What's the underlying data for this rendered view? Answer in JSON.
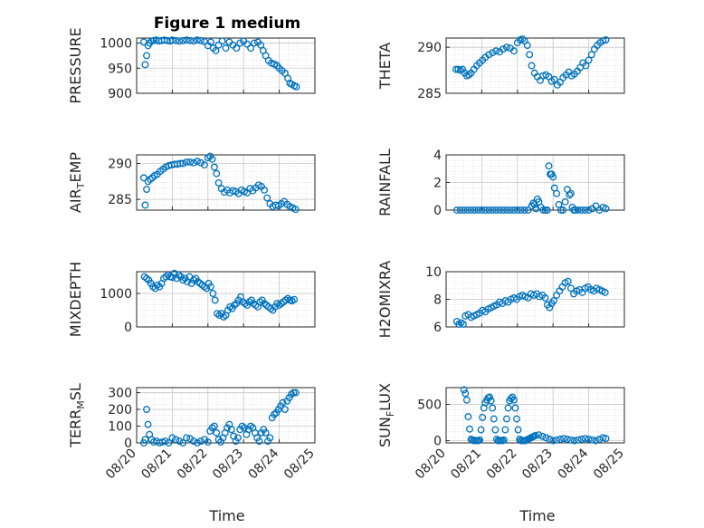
{
  "title": "Figure 1 medium",
  "xlabel": "Time",
  "colors": {
    "marker": "#0072bd",
    "axis": "#262626",
    "grid": "#d9d9d9"
  },
  "chart_data": [
    {
      "type": "scatter",
      "ylabel": "PRESSURE",
      "ylabel_main": "PRESSURE",
      "ylabel_sub": "",
      "ylabel_rest": "",
      "ylim": [
        900,
        1010
      ],
      "yticks": [
        900,
        950,
        1000
      ],
      "xlim": [
        0,
        5
      ],
      "xticks": [],
      "xticklabels": [],
      "x": [
        0.2,
        0.24,
        0.28,
        0.32,
        0.36,
        0.42,
        0.48,
        0.55,
        0.62,
        0.7,
        0.78,
        0.86,
        0.94,
        1.0,
        1.1,
        1.2,
        1.3,
        1.4,
        1.5,
        1.6,
        1.7,
        1.8,
        1.9,
        2.0,
        2.08,
        2.15,
        2.22,
        2.3,
        2.4,
        2.5,
        2.6,
        2.7,
        2.8,
        2.9,
        3.0,
        3.1,
        3.2,
        3.3,
        3.4,
        3.48,
        3.55,
        3.62,
        3.7,
        3.78,
        3.86,
        3.94,
        4.0,
        4.08,
        4.16,
        4.24,
        4.3,
        4.35,
        4.42,
        4.48
      ],
      "y": [
        1002,
        957,
        975,
        995,
        1000,
        1004,
        1005,
        1006,
        1004,
        1005,
        1006,
        1005,
        1004,
        1006,
        1005,
        1004,
        1005,
        1006,
        1005,
        1004,
        1006,
        1005,
        1003,
        995,
        1002,
        990,
        985,
        996,
        1004,
        990,
        1002,
        996,
        990,
        1000,
        1004,
        998,
        990,
        1000,
        1002,
        996,
        985,
        975,
        965,
        960,
        958,
        955,
        950,
        945,
        940,
        930,
        920,
        918,
        915,
        913
      ]
    },
    {
      "type": "scatter",
      "ylabel": "THETA",
      "ylabel_main": "THETA",
      "ylabel_sub": "",
      "ylabel_rest": "",
      "ylim": [
        285,
        291
      ],
      "yticks": [
        285,
        290
      ],
      "xlim": [
        0,
        5
      ],
      "xticks": [],
      "xticklabels": [],
      "x": [
        0.28,
        0.34,
        0.4,
        0.46,
        0.52,
        0.58,
        0.64,
        0.7,
        0.78,
        0.86,
        0.94,
        1.02,
        1.1,
        1.2,
        1.3,
        1.4,
        1.5,
        1.6,
        1.7,
        1.8,
        1.9,
        2.0,
        2.08,
        2.14,
        2.2,
        2.28,
        2.34,
        2.4,
        2.48,
        2.56,
        2.64,
        2.72,
        2.8,
        2.88,
        2.96,
        3.04,
        3.12,
        3.2,
        3.28,
        3.36,
        3.44,
        3.52,
        3.6,
        3.68,
        3.76,
        3.84,
        3.92,
        4.0,
        4.08,
        4.16,
        4.24,
        4.32,
        4.4,
        4.48
      ],
      "y": [
        287.6,
        287.6,
        287.5,
        287.6,
        287.2,
        286.9,
        287.0,
        287.2,
        287.6,
        288.0,
        288.3,
        288.6,
        288.9,
        289.2,
        289.4,
        289.6,
        289.5,
        289.8,
        290.0,
        289.9,
        289.6,
        290.5,
        290.8,
        290.9,
        290.7,
        290.2,
        289.2,
        288.0,
        287.2,
        286.8,
        286.4,
        286.9,
        287.0,
        286.8,
        286.3,
        286.5,
        285.9,
        286.2,
        286.7,
        287.0,
        287.3,
        286.9,
        287.1,
        287.4,
        287.8,
        288.3,
        288.0,
        288.6,
        289.2,
        289.8,
        290.2,
        290.5,
        290.7,
        290.8
      ]
    },
    {
      "type": "scatter",
      "ylabel": "AIR_TEMP",
      "ylabel_main": "AIR",
      "ylabel_sub": "T",
      "ylabel_rest": "EMP",
      "ylim": [
        283.5,
        291.2
      ],
      "yticks": [
        285,
        290
      ],
      "xlim": [
        0,
        5
      ],
      "xticks": [],
      "xticklabels": [],
      "x": [
        0.2,
        0.24,
        0.28,
        0.32,
        0.38,
        0.44,
        0.5,
        0.58,
        0.66,
        0.74,
        0.82,
        0.9,
        0.98,
        1.06,
        1.14,
        1.22,
        1.3,
        1.4,
        1.5,
        1.6,
        1.7,
        1.8,
        1.9,
        2.0,
        2.06,
        2.12,
        2.18,
        2.24,
        2.3,
        2.38,
        2.46,
        2.54,
        2.62,
        2.7,
        2.78,
        2.86,
        2.94,
        3.02,
        3.1,
        3.18,
        3.26,
        3.34,
        3.42,
        3.5,
        3.58,
        3.66,
        3.74,
        3.82,
        3.9,
        3.98,
        4.06,
        4.14,
        4.22,
        4.3,
        4.38,
        4.46
      ],
      "y": [
        288.0,
        284.2,
        286.4,
        287.5,
        287.8,
        288.0,
        288.3,
        288.5,
        288.9,
        289.2,
        289.5,
        289.7,
        289.8,
        289.9,
        289.9,
        290.0,
        290.0,
        290.2,
        290.2,
        290.1,
        290.3,
        290.1,
        289.8,
        290.8,
        291.0,
        290.6,
        289.5,
        288.6,
        287.3,
        286.5,
        286.0,
        286.3,
        285.9,
        286.2,
        286.1,
        285.8,
        286.3,
        286.1,
        285.9,
        286.5,
        286.2,
        286.6,
        287.0,
        286.8,
        286.3,
        285.2,
        284.4,
        284.0,
        284.2,
        284.1,
        284.4,
        284.7,
        284.3,
        284.0,
        283.8,
        283.6
      ]
    },
    {
      "type": "scatter",
      "ylabel": "RAINFALL",
      "ylabel_main": "RAINFALL",
      "ylabel_sub": "",
      "ylabel_rest": "",
      "ylim": [
        0,
        4
      ],
      "yticks": [
        0,
        2,
        4
      ],
      "xlim": [
        0,
        5
      ],
      "xticks": [],
      "xticklabels": [],
      "x": [
        0.3,
        0.4,
        0.5,
        0.6,
        0.7,
        0.8,
        0.9,
        1.0,
        1.1,
        1.2,
        1.3,
        1.4,
        1.5,
        1.6,
        1.7,
        1.8,
        1.9,
        2.0,
        2.1,
        2.2,
        2.3,
        2.4,
        2.44,
        2.48,
        2.52,
        2.56,
        2.6,
        2.66,
        2.72,
        2.78,
        2.84,
        2.88,
        2.92,
        2.96,
        3.0,
        3.04,
        3.1,
        3.16,
        3.22,
        3.28,
        3.34,
        3.4,
        3.46,
        3.5,
        3.54,
        3.58,
        3.62,
        3.7,
        3.8,
        3.9,
        4.0,
        4.1,
        4.2,
        4.3,
        4.4,
        4.48
      ],
      "y": [
        0,
        0,
        0,
        0,
        0,
        0,
        0,
        0,
        0,
        0,
        0,
        0,
        0,
        0,
        0,
        0,
        0,
        0,
        0,
        0,
        0,
        0.3,
        0.5,
        0.4,
        0.1,
        0.8,
        0.6,
        0.2,
        0,
        0,
        0,
        3.2,
        2.6,
        2.6,
        2.4,
        1.6,
        1.2,
        0.4,
        0,
        0,
        0.6,
        1.5,
        1.1,
        1.2,
        0.2,
        0,
        0,
        0,
        0,
        0,
        0,
        0.1,
        0.3,
        0,
        0.2,
        0.1
      ]
    },
    {
      "type": "scatter",
      "ylabel": "MIXDEPTH",
      "ylabel_main": "MIXDEPTH",
      "ylabel_sub": "",
      "ylabel_rest": "",
      "ylim": [
        0,
        1650
      ],
      "yticks": [
        0,
        1000
      ],
      "xlim": [
        0,
        5
      ],
      "xticks": [],
      "xticklabels": [],
      "x": [
        0.22,
        0.28,
        0.34,
        0.4,
        0.46,
        0.52,
        0.58,
        0.64,
        0.7,
        0.76,
        0.82,
        0.88,
        0.94,
        1.0,
        1.06,
        1.12,
        1.18,
        1.24,
        1.3,
        1.36,
        1.42,
        1.48,
        1.54,
        1.6,
        1.66,
        1.72,
        1.78,
        1.84,
        1.9,
        1.96,
        2.02,
        2.08,
        2.14,
        2.2,
        2.26,
        2.32,
        2.38,
        2.44,
        2.5,
        2.56,
        2.62,
        2.68,
        2.74,
        2.8,
        2.86,
        2.92,
        2.98,
        3.04,
        3.1,
        3.16,
        3.22,
        3.28,
        3.34,
        3.4,
        3.46,
        3.52,
        3.58,
        3.64,
        3.7,
        3.76,
        3.82,
        3.88,
        3.94,
        4.0,
        4.06,
        4.12,
        4.18,
        4.24,
        4.3,
        4.36,
        4.42
      ],
      "y": [
        1500,
        1450,
        1400,
        1300,
        1200,
        1150,
        1250,
        1200,
        1300,
        1450,
        1500,
        1550,
        1500,
        1480,
        1600,
        1450,
        1550,
        1500,
        1400,
        1450,
        1350,
        1500,
        1300,
        1400,
        1450,
        1350,
        1300,
        1250,
        1200,
        1150,
        1300,
        1200,
        1000,
        800,
        400,
        350,
        400,
        300,
        350,
        500,
        600,
        550,
        650,
        700,
        800,
        900,
        750,
        700,
        650,
        750,
        800,
        700,
        650,
        600,
        750,
        800,
        700,
        650,
        600,
        550,
        500,
        600,
        700,
        650,
        700,
        750,
        800,
        850,
        800,
        780,
        820
      ]
    },
    {
      "type": "scatter",
      "ylabel": "H2OMIXRA",
      "ylabel_main": "H2OMIXRA",
      "ylabel_sub": "",
      "ylabel_rest": "",
      "ylim": [
        6,
        10
      ],
      "yticks": [
        6,
        8,
        10
      ],
      "xlim": [
        0,
        5
      ],
      "xticks": [],
      "xticklabels": [],
      "x": [
        0.3,
        0.36,
        0.42,
        0.48,
        0.54,
        0.62,
        0.7,
        0.78,
        0.86,
        0.94,
        1.02,
        1.1,
        1.18,
        1.26,
        1.34,
        1.42,
        1.5,
        1.58,
        1.66,
        1.74,
        1.82,
        1.9,
        1.98,
        2.06,
        2.14,
        2.22,
        2.3,
        2.38,
        2.46,
        2.54,
        2.62,
        2.7,
        2.78,
        2.84,
        2.9,
        2.96,
        3.02,
        3.1,
        3.18,
        3.26,
        3.34,
        3.42,
        3.5,
        3.58,
        3.66,
        3.74,
        3.82,
        3.9,
        3.98,
        4.06,
        4.14,
        4.22,
        4.3,
        4.38,
        4.46
      ],
      "y": [
        6.4,
        6.2,
        6.3,
        6.2,
        6.8,
        6.9,
        6.7,
        6.8,
        6.9,
        7.0,
        7.2,
        7.1,
        7.3,
        7.4,
        7.5,
        7.6,
        7.8,
        7.7,
        7.9,
        7.8,
        8.0,
        8.1,
        8.0,
        8.2,
        8.3,
        8.2,
        8.1,
        8.4,
        8.3,
        8.4,
        8.2,
        8.3,
        8.1,
        7.6,
        7.4,
        7.7,
        7.9,
        8.3,
        8.6,
        8.9,
        9.2,
        9.3,
        8.8,
        8.4,
        8.6,
        8.7,
        8.5,
        8.8,
        8.9,
        8.7,
        8.6,
        8.8,
        8.7,
        8.6,
        8.5
      ]
    },
    {
      "type": "scatter",
      "ylabel": "TERR_MSL",
      "ylabel_main": "TERR",
      "ylabel_sub": "M",
      "ylabel_rest": "SL",
      "ylim": [
        0,
        330
      ],
      "yticks": [
        0,
        100,
        200,
        300
      ],
      "xlim": [
        0,
        5
      ],
      "xticks": [
        0,
        1,
        2,
        3,
        4,
        5
      ],
      "xticklabels": [
        "08/20",
        "08/21",
        "08/22",
        "08/23",
        "08/24",
        "08/25"
      ],
      "x": [
        0.2,
        0.24,
        0.28,
        0.32,
        0.36,
        0.42,
        0.48,
        0.56,
        0.64,
        0.72,
        0.8,
        0.9,
        1.0,
        1.1,
        1.2,
        1.3,
        1.4,
        1.5,
        1.6,
        1.7,
        1.8,
        1.9,
        2.0,
        2.06,
        2.12,
        2.18,
        2.24,
        2.3,
        2.36,
        2.42,
        2.48,
        2.54,
        2.6,
        2.66,
        2.72,
        2.78,
        2.84,
        2.9,
        2.96,
        3.02,
        3.08,
        3.14,
        3.2,
        3.26,
        3.32,
        3.38,
        3.44,
        3.5,
        3.56,
        3.62,
        3.68,
        3.74,
        3.8,
        3.86,
        3.92,
        3.98,
        4.04,
        4.1,
        4.16,
        4.22,
        4.28,
        4.34,
        4.4,
        4.46
      ],
      "y": [
        0,
        20,
        200,
        110,
        50,
        20,
        5,
        10,
        0,
        5,
        10,
        0,
        30,
        20,
        10,
        0,
        30,
        25,
        10,
        0,
        10,
        20,
        5,
        70,
        90,
        100,
        60,
        20,
        5,
        30,
        60,
        90,
        110,
        80,
        40,
        10,
        30,
        80,
        100,
        90,
        50,
        80,
        100,
        90,
        60,
        30,
        10,
        60,
        80,
        60,
        10,
        30,
        150,
        170,
        180,
        200,
        220,
        240,
        200,
        250,
        270,
        290,
        300,
        300
      ]
    },
    {
      "type": "scatter",
      "ylabel": "SUN_FLUX",
      "ylabel_main": "SUN",
      "ylabel_sub": "F",
      "ylabel_rest": "LUX",
      "ylim": [
        -30,
        730
      ],
      "yticks": [
        0,
        500
      ],
      "xlim": [
        0,
        5
      ],
      "xticks": [
        0,
        1,
        2,
        3,
        4,
        5
      ],
      "xticklabels": [
        "08/20",
        "08/21",
        "08/22",
        "08/23",
        "08/24",
        "08/25"
      ],
      "x": [
        0.5,
        0.54,
        0.58,
        0.62,
        0.66,
        0.7,
        0.74,
        0.78,
        0.82,
        0.86,
        0.9,
        0.94,
        0.98,
        1.02,
        1.06,
        1.1,
        1.14,
        1.18,
        1.22,
        1.26,
        1.3,
        1.34,
        1.38,
        1.42,
        1.46,
        1.5,
        1.54,
        1.58,
        1.62,
        1.66,
        1.7,
        1.74,
        1.78,
        1.82,
        1.86,
        1.9,
        1.94,
        1.98,
        2.02,
        2.06,
        2.1,
        2.14,
        2.18,
        2.22,
        2.26,
        2.3,
        2.34,
        2.38,
        2.42,
        2.46,
        2.5,
        2.6,
        2.7,
        2.8,
        2.9,
        3.0,
        3.1,
        3.2,
        3.3,
        3.4,
        3.5,
        3.6,
        3.7,
        3.8,
        3.9,
        4.0,
        4.1,
        4.2,
        4.3,
        4.4,
        4.48
      ],
      "y": [
        700,
        650,
        560,
        330,
        160,
        20,
        10,
        0,
        5,
        0,
        0,
        10,
        150,
        320,
        450,
        520,
        560,
        590,
        600,
        550,
        450,
        300,
        150,
        20,
        0,
        0,
        5,
        0,
        10,
        150,
        300,
        450,
        550,
        580,
        600,
        560,
        450,
        300,
        150,
        20,
        0,
        5,
        0,
        0,
        10,
        20,
        30,
        40,
        50,
        60,
        70,
        80,
        60,
        40,
        20,
        0,
        10,
        20,
        30,
        20,
        10,
        0,
        10,
        20,
        30,
        20,
        10,
        0,
        20,
        40,
        30
      ]
    }
  ]
}
